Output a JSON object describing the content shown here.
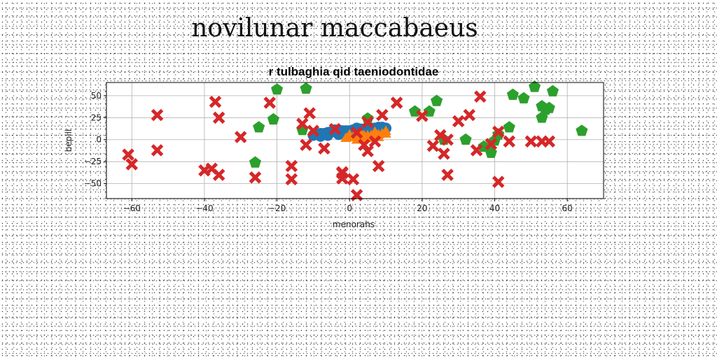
{
  "figure_title": "novilunar maccabaeus",
  "chart_data": {
    "type": "scatter",
    "title": "r tulbaghia qid taeniodontidae",
    "xlabel": "menorahs",
    "ylabel": "bepill",
    "xlim": [
      -67,
      70
    ],
    "ylim": [
      -67,
      65
    ],
    "xticks": [
      -60,
      -40,
      -20,
      0,
      20,
      40,
      60
    ],
    "yticks": [
      -50,
      -25,
      0,
      25,
      50
    ],
    "grid": true,
    "series": [
      {
        "marker": "circle",
        "color": "#1f77b4",
        "x": [
          -10,
          -9,
          -8,
          -7,
          -6,
          -5,
          -4,
          -3,
          -2,
          -1,
          0,
          1,
          2,
          3,
          4,
          5,
          6,
          7,
          8,
          9,
          10,
          -8,
          -6,
          -3,
          0,
          3,
          6,
          9,
          -4,
          2
        ],
        "y": [
          5,
          6,
          7,
          7,
          8,
          9,
          9,
          9,
          10,
          10,
          10,
          11,
          11,
          12,
          12,
          12,
          13,
          13,
          14,
          14,
          13,
          4,
          5,
          6,
          7,
          8,
          9,
          10,
          11,
          13
        ]
      },
      {
        "marker": "triangle",
        "color": "#ff7f0e",
        "x": [
          -1,
          0,
          1,
          2,
          3,
          4,
          5,
          6,
          7,
          8,
          9,
          10,
          2,
          4,
          6,
          8,
          0,
          3,
          7,
          10
        ],
        "y": [
          1,
          2,
          2,
          3,
          3,
          4,
          4,
          4,
          5,
          5,
          6,
          6,
          -1,
          0,
          1,
          2,
          5,
          7,
          8,
          9
        ]
      },
      {
        "marker": "pentagon",
        "color": "#2ca02c",
        "x": [
          -20,
          -12,
          -25,
          -21,
          -13,
          5,
          18,
          22,
          24,
          26,
          32,
          37,
          39,
          40,
          41,
          44,
          45,
          48,
          51,
          53,
          54,
          55,
          56,
          53,
          64,
          -26
        ],
        "y": [
          57,
          58,
          14,
          23,
          11,
          24,
          32,
          32,
          44,
          0,
          0,
          -8,
          -15,
          -1,
          6,
          14,
          51,
          47,
          60,
          38,
          34,
          36,
          55,
          25,
          10,
          -26
        ]
      },
      {
        "marker": "x",
        "color": "#d62728",
        "x": [
          -53,
          -61,
          -60,
          -53,
          -36,
          -37,
          -30,
          -22,
          -11,
          -13,
          -12,
          -10,
          -7,
          -4,
          -2,
          1,
          2,
          5,
          9,
          13,
          20,
          23,
          25,
          26,
          27,
          30,
          33,
          36,
          35,
          39,
          41,
          44,
          50,
          53,
          55,
          -40,
          -38,
          -36,
          -26,
          -16,
          -16,
          -2,
          -2,
          2,
          4,
          8,
          27,
          41,
          5,
          7
        ],
        "y": [
          28,
          -17,
          -28,
          -12,
          25,
          43,
          3,
          42,
          30,
          18,
          -6,
          10,
          -10,
          12,
          -38,
          -45,
          -63,
          -13,
          28,
          42,
          27,
          -7,
          5,
          -16,
          -40,
          21,
          28,
          49,
          -12,
          -5,
          9,
          -2,
          -2,
          -2,
          -2,
          -35,
          -33,
          -40,
          -43,
          -30,
          -45,
          -37,
          -44,
          8,
          -6,
          -30,
          0,
          -48,
          20,
          -2
        ]
      }
    ]
  }
}
